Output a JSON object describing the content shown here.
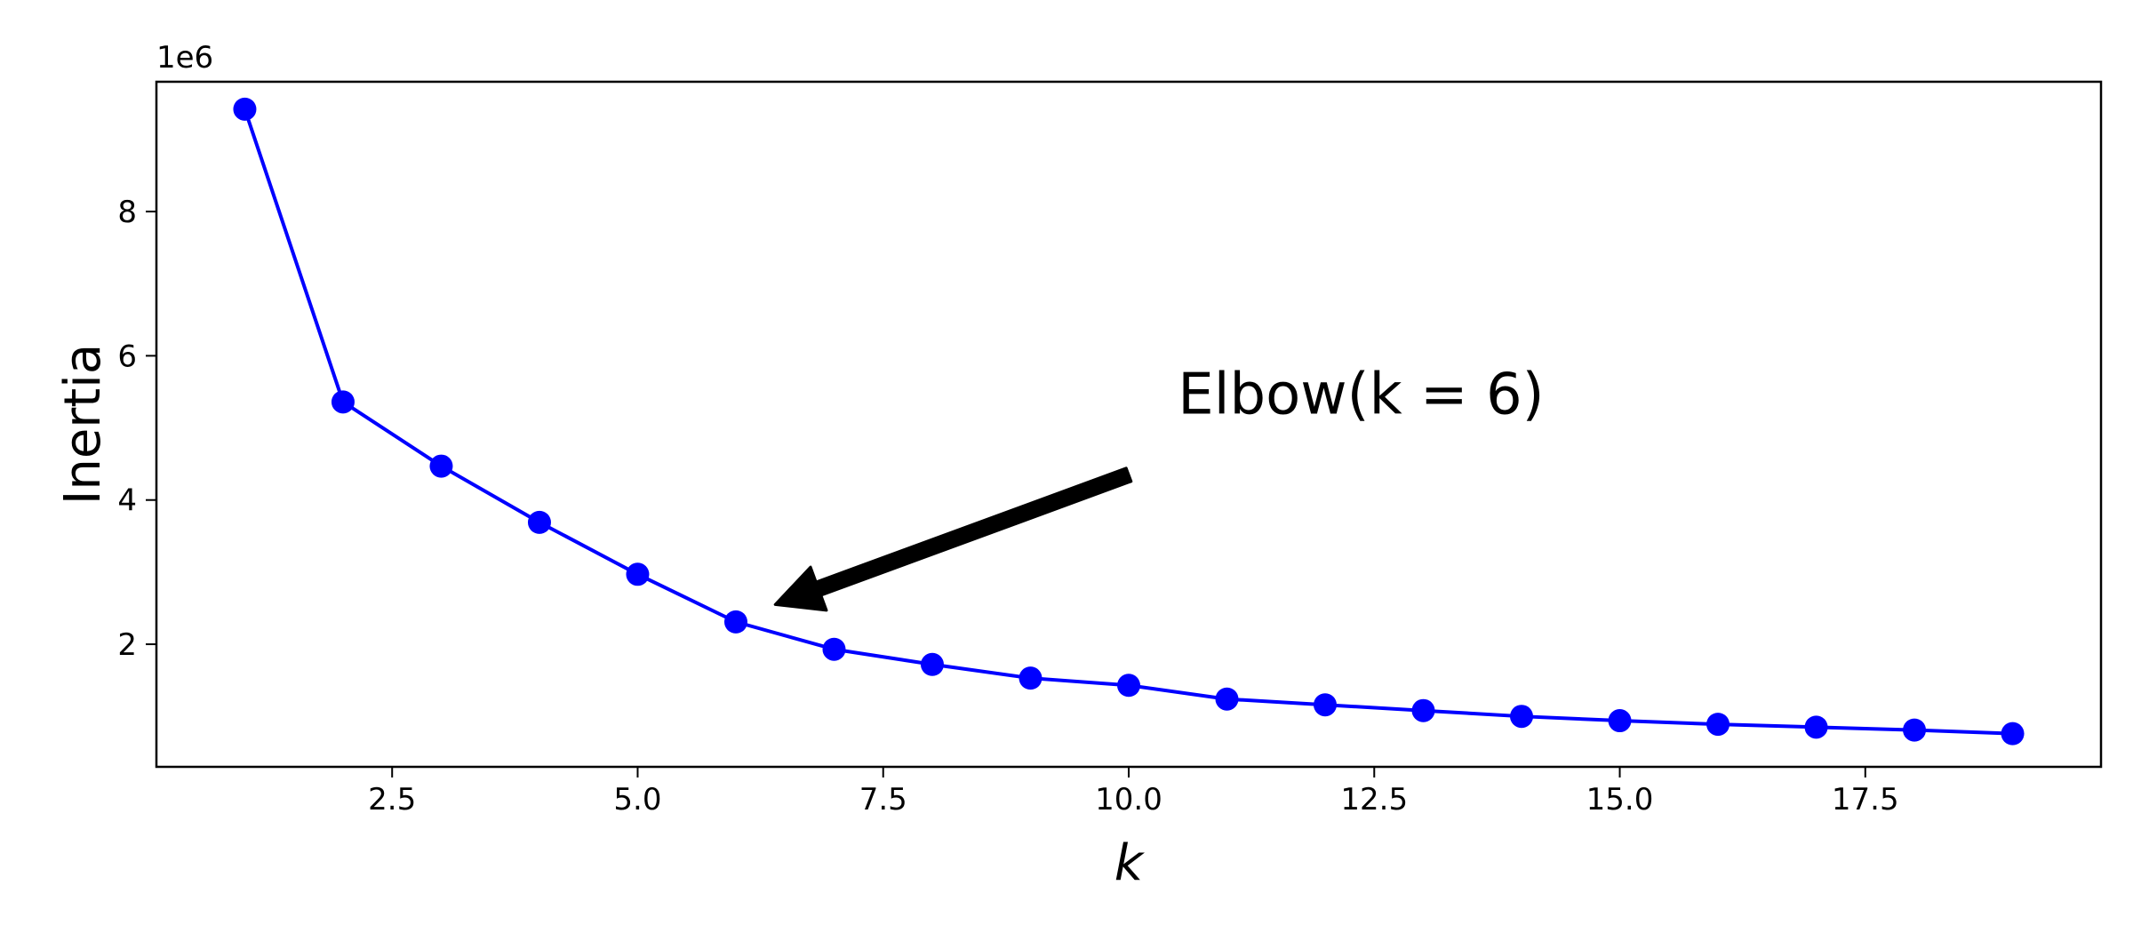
{
  "chart_data": {
    "type": "line",
    "title": "",
    "xlabel": "k",
    "ylabel": "Inertia",
    "y_offset_label": "1e6",
    "xlim": [
      0.1,
      19.9
    ],
    "ylim": [
      0.3,
      9.8
    ],
    "x_ticks": [
      2.5,
      5.0,
      7.5,
      10.0,
      12.5,
      15.0,
      17.5
    ],
    "x_tick_labels": [
      "2.5",
      "5.0",
      "7.5",
      "10.0",
      "12.5",
      "15.0",
      "17.5"
    ],
    "y_ticks": [
      2,
      4,
      6,
      8
    ],
    "y_tick_labels": [
      "2",
      "4",
      "6",
      "8"
    ],
    "grid": false,
    "colors": {
      "series": "#0000ff",
      "axes": "#000000",
      "arrow": "#000000"
    },
    "series": [
      {
        "x": [
          1,
          2,
          3,
          4,
          5,
          6,
          7,
          8,
          9,
          10,
          11,
          12,
          13,
          14,
          15,
          16,
          17,
          18,
          19
        ],
        "values": [
          9.42,
          5.36,
          4.47,
          3.69,
          2.97,
          2.31,
          1.93,
          1.72,
          1.53,
          1.43,
          1.24,
          1.16,
          1.08,
          1.0,
          0.94,
          0.89,
          0.85,
          0.81,
          0.76
        ]
      }
    ],
    "annotation": {
      "text": "Elbow(k = 6)",
      "text_xy": [
        10.5,
        5.2
      ],
      "arrow_from": [
        10.0,
        4.35
      ],
      "arrow_to": [
        6.4,
        2.55
      ]
    }
  }
}
